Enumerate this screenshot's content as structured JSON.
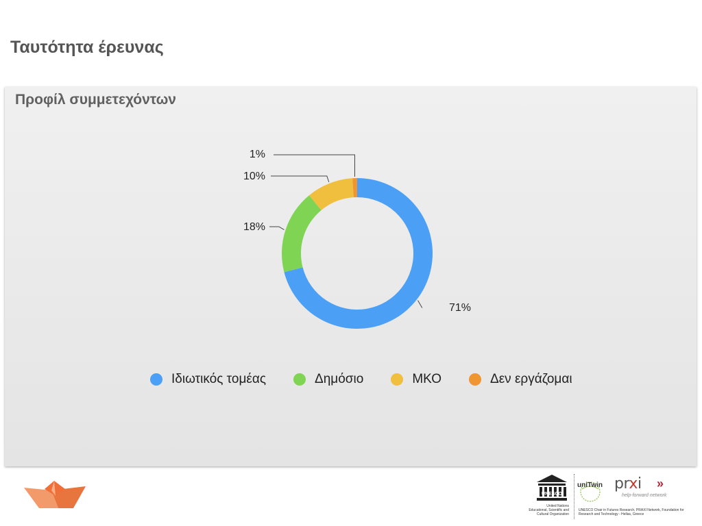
{
  "slide": {
    "title": "Ταυτότητα έρευνας"
  },
  "chart_data": {
    "type": "pie",
    "variant": "donut",
    "title": "Προφίλ συμμετεχόντων",
    "categories": [
      "Ιδιωτικός τομέας",
      "Δημόσιο",
      "ΜΚΟ",
      "Δεν εργάζομαι"
    ],
    "values": [
      71,
      18,
      10,
      1
    ],
    "labels": [
      "71%",
      "18%",
      "10%",
      "1%"
    ],
    "unit": "%",
    "colors": [
      "#4ba0f5",
      "#7fd454",
      "#f1bf3e",
      "#ef9632"
    ],
    "legend_position": "bottom"
  },
  "footer": {
    "unesco": {
      "emblem_text": "UNESCO",
      "lines": [
        "United Nations",
        "Educational, Scientific and",
        "Cultural Organization"
      ]
    },
    "unitwin": {
      "text": "uniTwin"
    },
    "praxi": {
      "name_pre": "pr",
      "name_x": "x",
      "name_post": "i",
      "chevron": "»",
      "tagline": "help-forward network"
    },
    "chair_text": "UNESCO Chair in Futures Research, PRAXI Network, Foundation for Research and Technology - Hellas, Greece"
  }
}
